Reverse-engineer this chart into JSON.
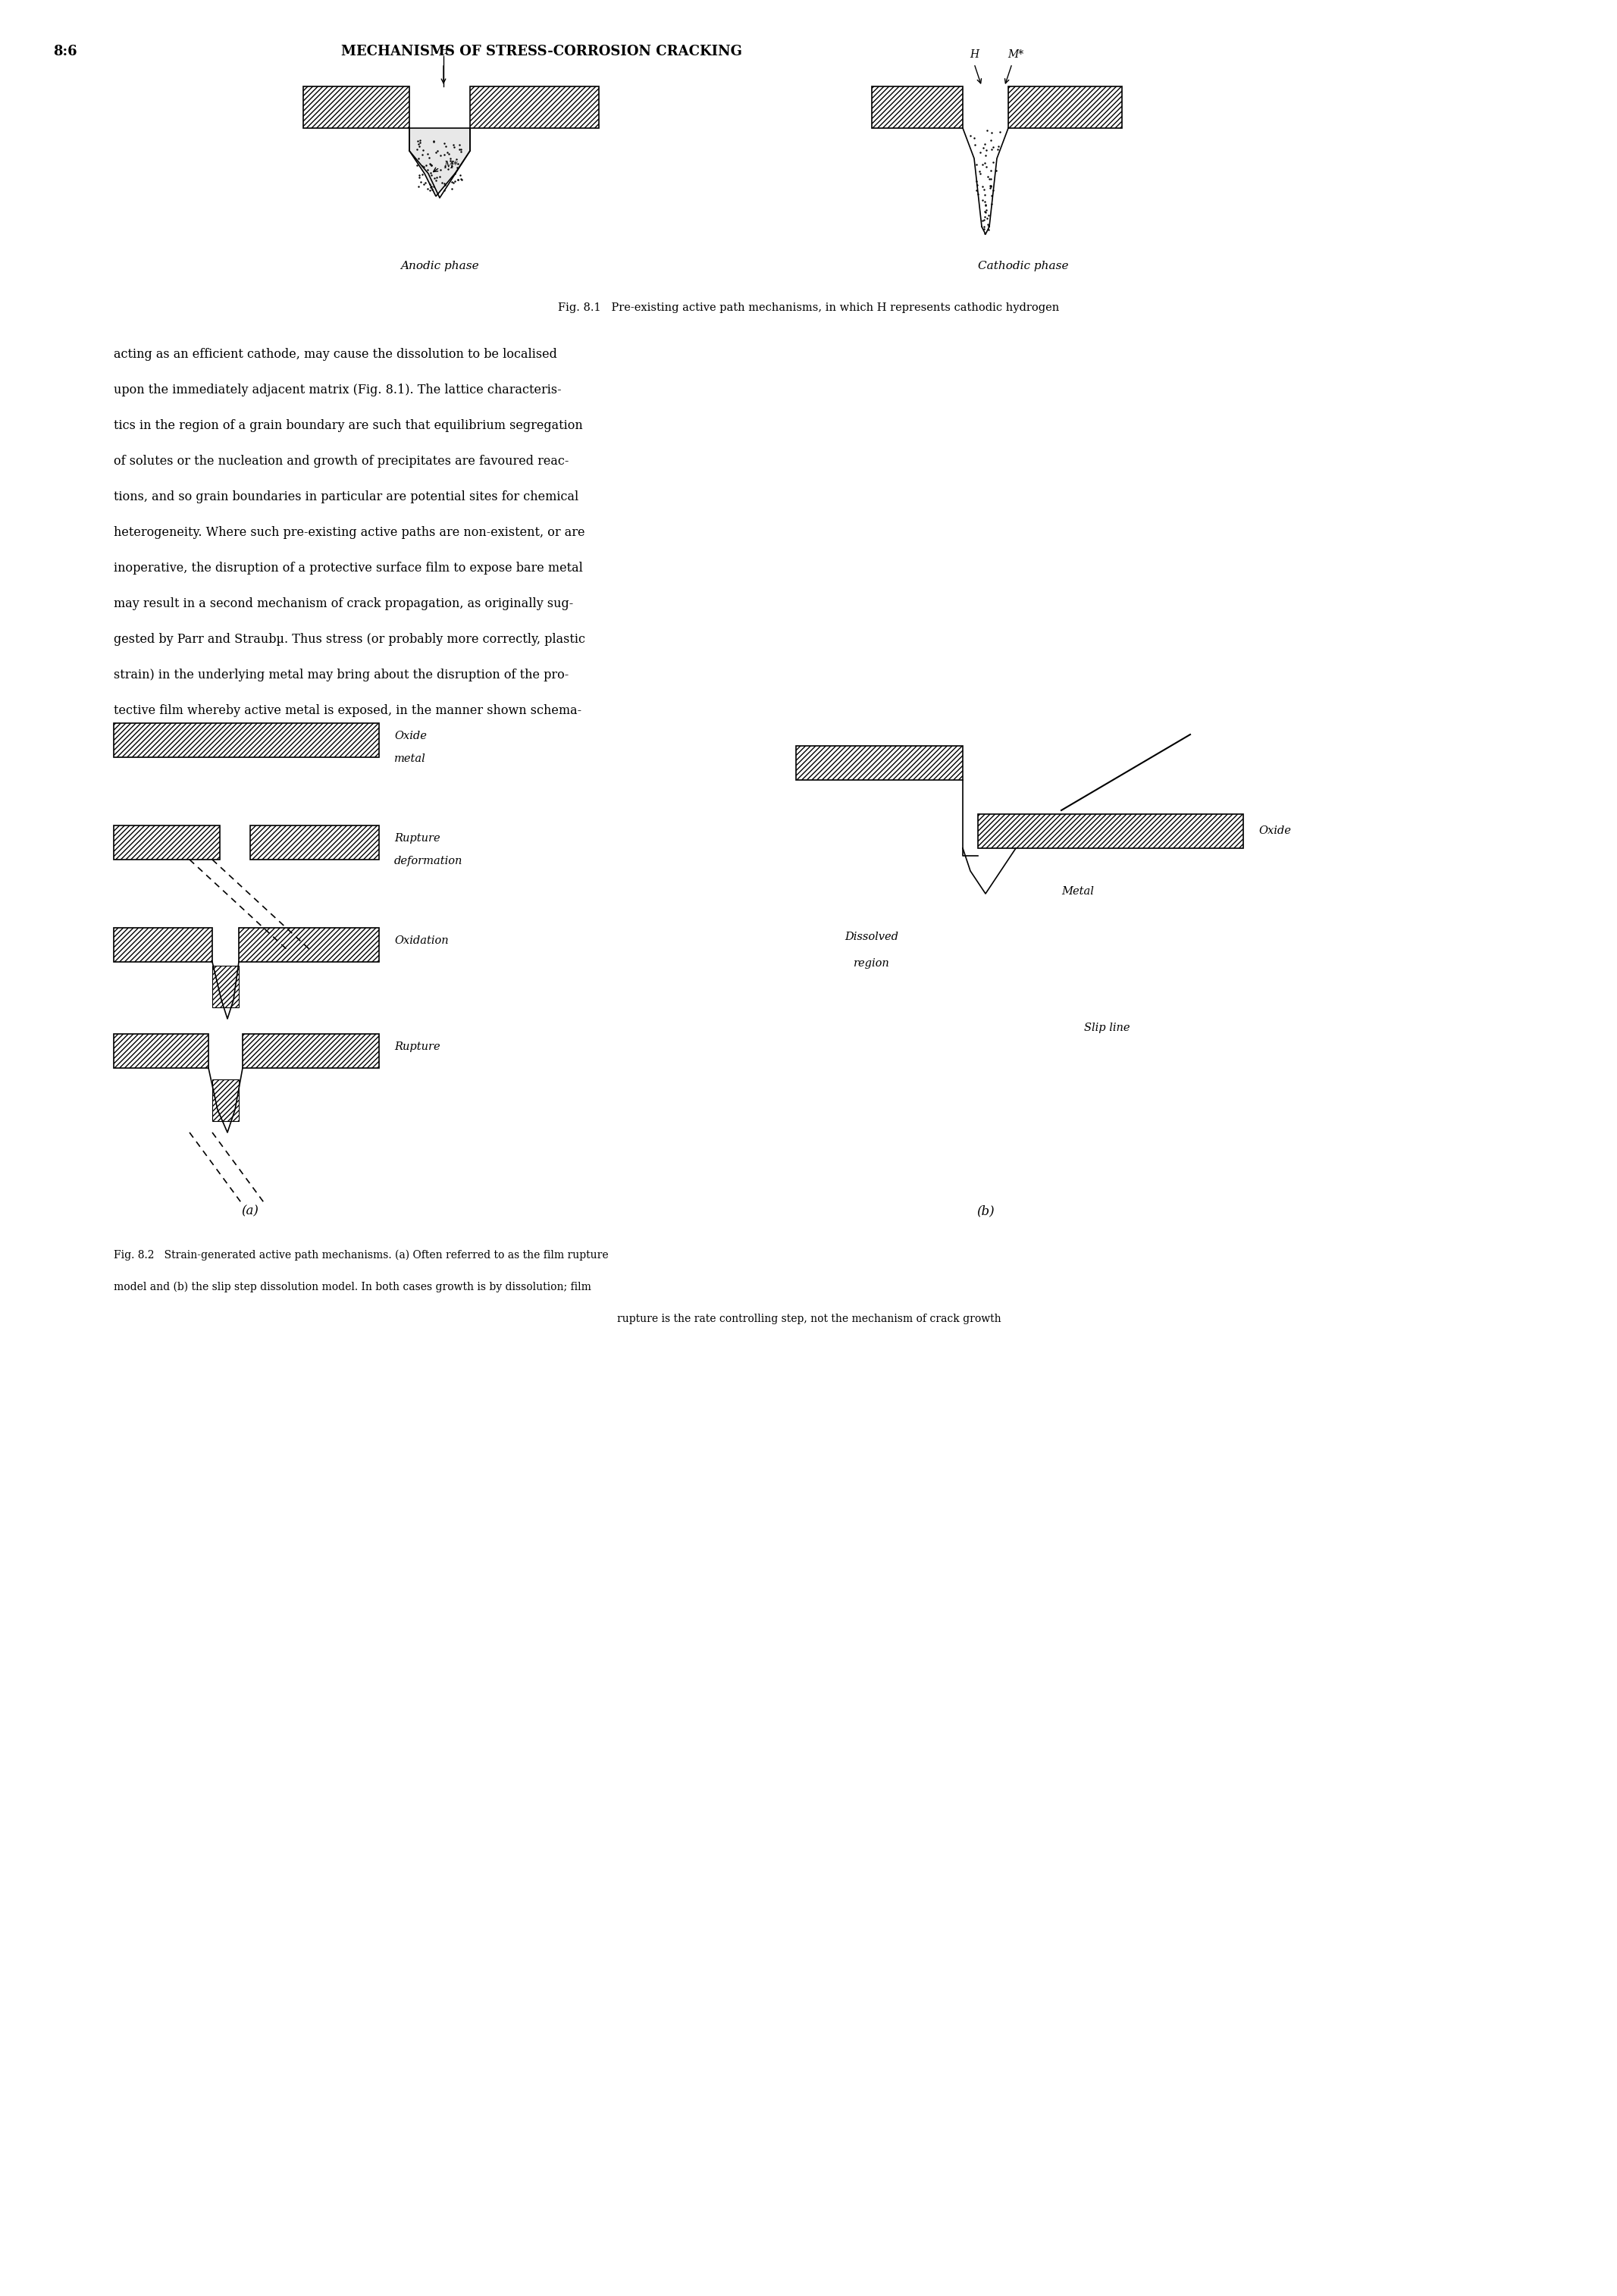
{
  "page_header_left": "8:6",
  "page_header_right": "MECHANISMS OF STRESS-CORROSION CRACKING",
  "fig81_caption": "Fig. 8.1   Pre-existing active path mechanisms, in which H represents cathodic hydrogen",
  "body_text": [
    "acting as an efficient cathode, may cause the dissolution to be localised",
    "upon the immediately adjacent matrix (Fig. 8.1). The lattice characteris-",
    "tics in the region of a grain boundary are such that equilibrium segregation",
    "of solutes or the nucleation and growth of precipitates are favoured reac-",
    "tions, and so grain boundaries in particular are potential sites for chemical",
    "heterogeneity. Where such pre-existing active paths are non-existent, or are",
    "inoperative, the disruption of a protective surface film to expose bare metal",
    "may result in a second mechanism of crack propagation, as originally sug-",
    "gested by Parr and Straubµ. Thus stress (or probably more correctly, plastic",
    "strain) in the underlying metal may bring about the disruption of the pro-",
    "tective film whereby active metal is exposed, in the manner shown schema-"
  ],
  "fig82_caption_line1": "Fig. 8.2   Strain-generated active path mechanisms. (a) Often referred to as the film rupture",
  "fig82_caption_line2": "model and (b) the slip step dissolution model. In both cases growth is by dissolution; film",
  "fig82_caption_line3": "rupture is the rate controlling step, not the mechanism of crack growth",
  "label_a": "(a)",
  "label_b": "(b)",
  "bg_color": "#ffffff",
  "text_color": "#000000"
}
